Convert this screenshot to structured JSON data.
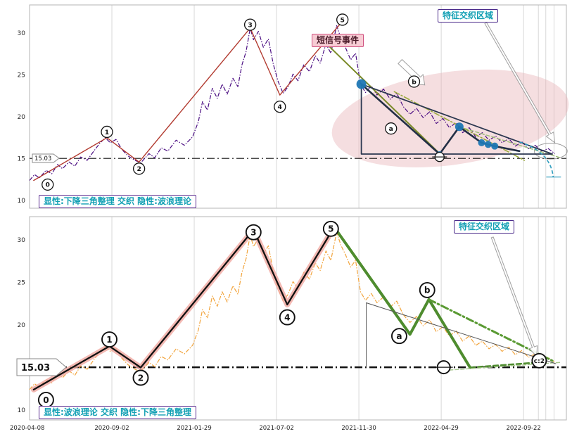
{
  "chart_data": {
    "type": "line",
    "x_tick_labels": [
      "2020-04-08",
      "2020-09-02",
      "2021-01-29",
      "2021-07-02",
      "2021-11-30",
      "2022-04-29",
      "2022-09-22"
    ],
    "y_ticks": [
      10,
      15,
      20,
      25,
      30
    ],
    "x_domain": [
      0,
      6.52
    ],
    "extra_gridlines": [
      6.18,
      6.27,
      6.37
    ],
    "hline": 15.03,
    "price_series": [
      [
        0.0,
        12.4
      ],
      [
        0.06,
        13.1
      ],
      [
        0.12,
        12.7
      ],
      [
        0.2,
        13.6
      ],
      [
        0.27,
        13.2
      ],
      [
        0.34,
        14.3
      ],
      [
        0.4,
        13.8
      ],
      [
        0.48,
        14.6
      ],
      [
        0.55,
        14.1
      ],
      [
        0.62,
        15.2
      ],
      [
        0.7,
        14.8
      ],
      [
        0.78,
        15.9
      ],
      [
        0.85,
        16.8
      ],
      [
        0.92,
        17.5
      ],
      [
        0.98,
        16.9
      ],
      [
        1.05,
        17.3
      ],
      [
        1.12,
        16.1
      ],
      [
        1.2,
        15.3
      ],
      [
        1.28,
        14.8
      ],
      [
        1.35,
        14.5
      ],
      [
        1.45,
        15.6
      ],
      [
        1.52,
        15.1
      ],
      [
        1.6,
        16.3
      ],
      [
        1.68,
        15.9
      ],
      [
        1.78,
        17.2
      ],
      [
        1.88,
        16.6
      ],
      [
        1.98,
        17.6
      ],
      [
        2.05,
        19.4
      ],
      [
        2.1,
        21.8
      ],
      [
        2.16,
        20.8
      ],
      [
        2.22,
        23.4
      ],
      [
        2.28,
        22.2
      ],
      [
        2.34,
        23.9
      ],
      [
        2.4,
        22.7
      ],
      [
        2.47,
        24.6
      ],
      [
        2.53,
        23.6
      ],
      [
        2.58,
        26.2
      ],
      [
        2.63,
        27.8
      ],
      [
        2.68,
        30.6
      ],
      [
        2.72,
        29.2
      ],
      [
        2.78,
        30.2
      ],
      [
        2.84,
        28.3
      ],
      [
        2.9,
        29.3
      ],
      [
        2.96,
        26.3
      ],
      [
        3.02,
        24.2
      ],
      [
        3.08,
        22.8
      ],
      [
        3.14,
        23.6
      ],
      [
        3.2,
        25.1
      ],
      [
        3.26,
        24.3
      ],
      [
        3.33,
        26.2
      ],
      [
        3.4,
        25.4
      ],
      [
        3.47,
        27.3
      ],
      [
        3.53,
        26.4
      ],
      [
        3.6,
        28.7
      ],
      [
        3.66,
        27.6
      ],
      [
        3.73,
        30.9
      ],
      [
        3.78,
        29.4
      ],
      [
        3.84,
        28.2
      ],
      [
        3.9,
        26.8
      ],
      [
        3.96,
        27.6
      ],
      [
        4.02,
        23.9
      ],
      [
        4.08,
        22.9
      ],
      [
        4.15,
        23.7
      ],
      [
        4.22,
        22.6
      ],
      [
        4.3,
        23.3
      ],
      [
        4.38,
        22.1
      ],
      [
        4.46,
        22.8
      ],
      [
        4.54,
        21.2
      ],
      [
        4.62,
        20.3
      ],
      [
        4.7,
        21.0
      ],
      [
        4.78,
        19.9
      ],
      [
        4.86,
        20.6
      ],
      [
        4.94,
        19.2
      ],
      [
        5.02,
        19.8
      ],
      [
        5.1,
        18.7
      ],
      [
        5.18,
        19.3
      ],
      [
        5.26,
        18.1
      ],
      [
        5.34,
        18.7
      ],
      [
        5.42,
        17.6
      ],
      [
        5.5,
        18.1
      ],
      [
        5.58,
        17.2
      ],
      [
        5.66,
        17.7
      ],
      [
        5.74,
        16.9
      ],
      [
        5.82,
        17.4
      ],
      [
        5.9,
        16.5
      ],
      [
        5.98,
        17.0
      ],
      [
        6.06,
        16.2
      ],
      [
        6.14,
        16.6
      ],
      [
        6.22,
        15.9
      ],
      [
        6.3,
        16.2
      ],
      [
        6.38,
        15.6
      ]
    ],
    "charts": [
      {
        "y_domain": [
          9.08,
          33.36
        ],
        "price_color": "#4a0d82",
        "price_dash": "6 2 1.5 2",
        "hline_width": 1.1,
        "marker_r": 8,
        "marker_stroke": 1.3,
        "dot_color": "#1f77b4",
        "labels": {
          "signal_event": "短信号事件",
          "region": "特征交织区域",
          "dominant": "显性:下降三角整理 交织 隐性:波浪理论",
          "price_tag": "15.03"
        },
        "lines": [
          {
            "name": "elliott-trend-line",
            "points": [
              [
                0.05,
                12.4
              ],
              [
                0.94,
                17.5
              ],
              [
                1.33,
                14.6
              ],
              [
                2.68,
                30.6
              ],
              [
                3.04,
                22.6
              ],
              [
                3.8,
                31.4
              ]
            ],
            "color": "#b23b30",
            "width": 1.4
          },
          {
            "name": "signal-line-olive",
            "points": [
              [
                3.62,
                28.6
              ],
              [
                4.98,
                15.6
              ]
            ],
            "color": "#7a8a28",
            "width": 2
          },
          {
            "name": "olive-dashdot-line",
            "points": [
              [
                4.43,
                23.0
              ],
              [
                6.01,
                14.8
              ]
            ],
            "color": "#9aa93c",
            "width": 1.6,
            "dash": "8 3 2 3"
          },
          {
            "name": "light-green-dashed",
            "points": [
              [
                5.22,
                18.8
              ],
              [
                6.45,
                15.1
              ]
            ],
            "color": "#9fbf76",
            "width": 1.4,
            "dash": "5 3"
          },
          {
            "name": "triangle-wave-zigzag",
            "points": [
              [
                4.03,
                23.9
              ],
              [
                4.98,
                15.55
              ],
              [
                5.22,
                18.8
              ],
              [
                5.49,
                16.9
              ],
              [
                5.62,
                16.55
              ],
              [
                5.95,
                15.9
              ]
            ],
            "color": "#232f45",
            "width": 2.6
          },
          {
            "name": "cyan-curve-endtick",
            "points": [
              [
                6.28,
                12.8
              ],
              [
                6.45,
                12.8
              ]
            ],
            "color": "#2f9dbe",
            "width": 1.2
          }
        ],
        "polygons": [
          {
            "name": "descending-triangle",
            "points": [
              [
                4.03,
                23.9
              ],
              [
                4.03,
                15.55
              ],
              [
                6.35,
                15.55
              ]
            ],
            "stroke": "#2b3750",
            "width": 1.8
          }
        ],
        "ellipses": [
          {
            "name": "highlight-ellipse",
            "cx": 5.11,
            "cy": 19.8,
            "rx": 1.45,
            "ry": 5.55,
            "rot": -8,
            "fill": "#e8b0b6",
            "opacity": 0.42
          },
          {
            "name": "apex-ellipse",
            "cx": 6.33,
            "cy": 15.9,
            "rx": 0.2,
            "ry": 0.95,
            "rot": 0,
            "stroke": "#9a9a9a",
            "width": 1
          }
        ],
        "curves": [
          {
            "name": "projection-curve",
            "start": [
              5.95,
              17.0
            ],
            "ctrl": [
              6.33,
              15.8
            ],
            "end": [
              6.36,
              12.8
            ],
            "color": "#2f9dbe",
            "width": 1.6,
            "dash": "5 3"
          }
        ],
        "dots": [
          [
            4.03,
            23.9,
            7
          ],
          [
            5.22,
            18.8,
            6
          ],
          [
            5.49,
            16.9,
            5
          ],
          [
            5.57,
            16.7,
            5
          ],
          [
            5.65,
            16.5,
            5
          ],
          [
            4.98,
            15.55,
            4
          ]
        ],
        "arrows": [
          {
            "tail": [
              4.5,
              26.6
            ],
            "head": [
              4.8,
              23.8
            ],
            "sw": 4,
            "hw": 9,
            "hl": 12
          },
          {
            "tail": [
              5.54,
              31.2
            ],
            "head": [
              6.38,
              16.9
            ],
            "sw": 1.5,
            "hw": 6,
            "hl": 14
          }
        ],
        "markers": [
          {
            "label": "0",
            "x": 0.22,
            "y": 11.9
          },
          {
            "label": "1",
            "x": 0.94,
            "y": 18.2
          },
          {
            "label": "2",
            "x": 1.33,
            "y": 13.8
          },
          {
            "label": "3",
            "x": 2.68,
            "y": 31.0
          },
          {
            "label": "4",
            "x": 3.04,
            "y": 21.2
          },
          {
            "label": "5",
            "x": 3.8,
            "y": 31.6
          },
          {
            "label": "a",
            "x": 4.39,
            "y": 18.6
          },
          {
            "label": "b",
            "x": 4.67,
            "y": 24.2
          },
          {
            "type": "minus",
            "x": 4.98,
            "y": 15.2,
            "r": 6.5
          }
        ]
      },
      {
        "y_domain": [
          8.84,
          32.73
        ],
        "price_color": "#f2a43c",
        "price_dash": "6 2 1.5 2",
        "hline_width": 2.4,
        "marker_r": 10.5,
        "marker_stroke": 1.9,
        "dot_color": "#1f77b4",
        "labels": {
          "region": "特征交织区域",
          "dominant": "显性:波浪理论 交织 隐性:下降三角整理",
          "price_tag": "15.03"
        },
        "lines": [
          {
            "name": "wave-highlight-underlay",
            "points": [
              [
                0.05,
                12.4
              ],
              [
                0.97,
                17.5
              ],
              [
                1.35,
                15.0
              ],
              [
                2.72,
                31.2
              ],
              [
                3.13,
                22.4
              ],
              [
                3.7,
                31.5
              ]
            ],
            "color": "#f0a8a0",
            "width": 8,
            "opacity": 0.8
          },
          {
            "name": "wave-zigzag",
            "points": [
              [
                0.05,
                12.4
              ],
              [
                0.97,
                17.5
              ],
              [
                1.35,
                15.0
              ],
              [
                2.72,
                31.2
              ],
              [
                3.13,
                22.4
              ],
              [
                3.7,
                31.5
              ]
            ],
            "color": "#111111",
            "width": 2.3
          },
          {
            "name": "abc-green-solid",
            "points": [
              [
                3.7,
                31.5
              ],
              [
                4.62,
                18.9
              ],
              [
                4.85,
                23.0
              ],
              [
                5.35,
                15.0
              ]
            ],
            "color": "#4e8c2e",
            "width": 4
          },
          {
            "name": "abc-green-dashed",
            "points": [
              [
                5.35,
                15.0
              ],
              [
                6.19,
                15.6
              ]
            ],
            "color": "#4e8c2e",
            "width": 2.5,
            "dash": "7 4"
          },
          {
            "name": "green-dashdot-line",
            "points": [
              [
                4.85,
                23.0
              ],
              [
                6.35,
                15.8
              ]
            ],
            "color": "#5a9a33",
            "width": 3,
            "dash": "10 4 2 4"
          },
          {
            "name": "light-green-dashed-flat",
            "points": [
              [
                5.1,
                14.7
              ],
              [
                6.45,
                15.6
              ]
            ],
            "color": "#a8c890",
            "width": 1.4,
            "dash": "5 3"
          },
          {
            "name": "thin-triangle-hypotenuse",
            "points": [
              [
                4.09,
                22.6
              ],
              [
                6.39,
                15.45
              ]
            ],
            "color": "#555555",
            "width": 1
          },
          {
            "name": "thin-triangle-vertical",
            "points": [
              [
                4.09,
                22.6
              ],
              [
                4.09,
                15.03
              ]
            ],
            "color": "#555555",
            "width": 1
          }
        ],
        "polygons": [],
        "ellipses": [],
        "curves": [],
        "dots": [],
        "arrows": [
          {
            "tail": [
              5.62,
              30.3
            ],
            "head": [
              6.16,
              16.3
            ],
            "sw": 1.5,
            "hw": 6,
            "hl": 14
          }
        ],
        "markers": [
          {
            "label": "0",
            "x": 0.2,
            "y": 11.2
          },
          {
            "label": "1",
            "x": 0.97,
            "y": 18.3
          },
          {
            "label": "2",
            "x": 1.35,
            "y": 13.8
          },
          {
            "label": "3",
            "x": 2.72,
            "y": 30.9
          },
          {
            "label": "4",
            "x": 3.13,
            "y": 20.9
          },
          {
            "label": "5",
            "x": 3.66,
            "y": 31.3
          },
          {
            "label": "a",
            "x": 4.49,
            "y": 18.7
          },
          {
            "label": "b",
            "x": 4.83,
            "y": 24.1
          },
          {
            "type": "minus",
            "x": 5.03,
            "y": 15.03,
            "r": 9
          },
          {
            "label": "c:2",
            "x": 6.19,
            "y": 15.8,
            "r": 10,
            "fs": 9
          }
        ]
      }
    ]
  }
}
